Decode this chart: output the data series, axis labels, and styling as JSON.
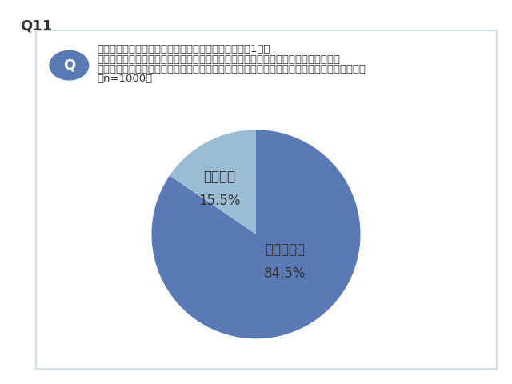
{
  "title": "Q11",
  "question_line1": "あなたは、自転車保険を知っていますか。（お答えは1つ）",
  "question_line2": "＊自転車保険とは、自転車事故のリスクをカバーするために「個人賠償責任補償」と",
  "question_line3": "「傷害補償」、いくつかの特約や付帯サービスがセットになっている保険のことを指します。",
  "question_line4": "（n=1000）",
  "slices": [
    84.5,
    15.5
  ],
  "labels": [
    "知っている",
    "知らない"
  ],
  "pct_labels": [
    "84.5%",
    "15.5%"
  ],
  "colors": [
    "#5a7ab5",
    "#9abcd4"
  ],
  "startangle": 90,
  "background_color": "#ffffff",
  "box_color": "#c8d8e8",
  "q_circle_color": "#5a7ab5",
  "text_color": "#333333",
  "title_fontsize": 13,
  "question_fontsize": 9.5,
  "label_fontsize": 12,
  "pct_fontsize": 12
}
